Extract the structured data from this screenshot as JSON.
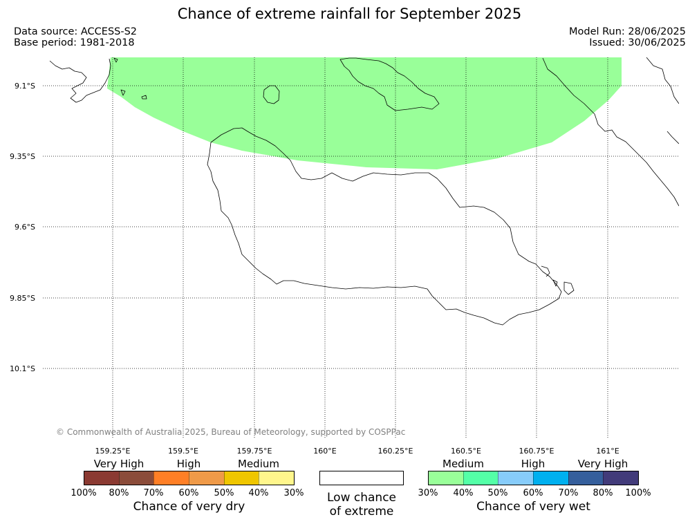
{
  "title": "Chance of extreme rainfall for September 2025",
  "header": {
    "data_source": "Data source: ACCESS-S2",
    "base_period": "Base period: 1981-2018",
    "model_run": "Model Run: 28/06/2025",
    "issued": "Issued: 30/06/2025"
  },
  "map": {
    "lat_labels": [
      "9.1°S",
      "9.35°S",
      "9.6°S",
      "9.85°S",
      "10.1°S"
    ],
    "lon_labels": [
      "159.25°E",
      "159.5°E",
      "159.75°E",
      "160°E",
      "160.25°E",
      "160.5°E",
      "160.75°E",
      "161°E"
    ],
    "forecast_area": {
      "category": "Very wet - Medium",
      "color": "#99ff99"
    },
    "grid_style": "dotted",
    "coastline_color": "#000000"
  },
  "copyright": "© Commonwealth of Australia 2025, Bureau of Meteorology, supported by COSPPac",
  "legend": {
    "dry": {
      "categories": [
        "Very High",
        "High",
        "Medium"
      ],
      "colors": [
        "#8b3a32",
        "#8b4c3a",
        "#ff7f26",
        "#ef9a48",
        "#efc600",
        "#fff68c"
      ],
      "ticks": [
        "100%",
        "80%",
        "70%",
        "60%",
        "50%",
        "40%",
        "30%"
      ],
      "title": "Chance of very dry"
    },
    "low": {
      "line1": "Low chance",
      "line2": "of extreme",
      "color": "#ffffff"
    },
    "wet": {
      "categories": [
        "Medium",
        "High",
        "Very High"
      ],
      "colors": [
        "#99ff99",
        "#54ffa7",
        "#87ccfa",
        "#00b0ef",
        "#355f9c",
        "#423b7a"
      ],
      "ticks": [
        "30%",
        "40%",
        "50%",
        "60%",
        "70%",
        "80%",
        "100%"
      ],
      "title": "Chance of very wet"
    }
  }
}
